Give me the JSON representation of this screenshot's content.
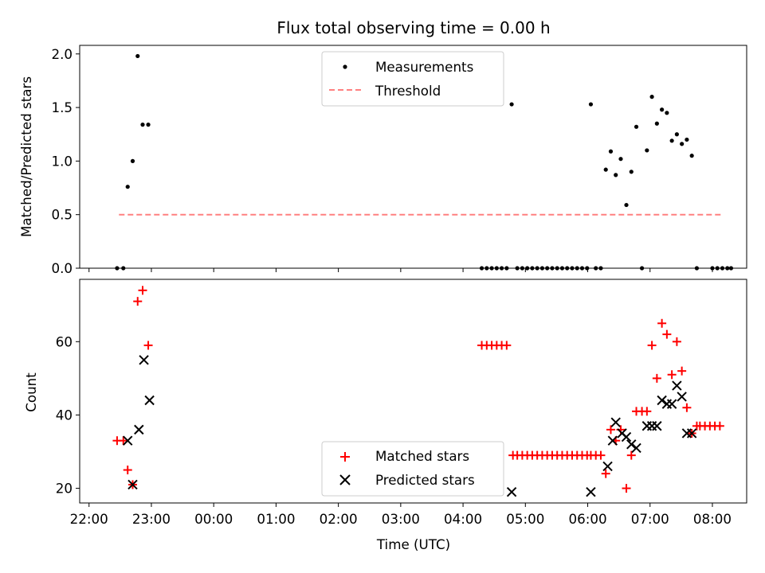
{
  "chart_data": [
    {
      "type": "scatter",
      "title": "Flux total observing time = 0.00 h",
      "xlabel": "",
      "ylabel": "Matched/Predicted stars",
      "xlim": [
        -0.15,
        10.55
      ],
      "ylim": [
        0,
        2.08
      ],
      "yticks": [
        0.0,
        0.5,
        1.0,
        1.5,
        2.0
      ],
      "ytick_labels": [
        "0.0",
        "0.5",
        "1.0",
        "1.5",
        "2.0"
      ],
      "legend": [
        "Measurements",
        "Threshold"
      ],
      "legend_position": "upper center",
      "series": [
        {
          "name": "Measurements",
          "marker": "dot",
          "color": "#000000",
          "x": [
            0.45,
            0.55,
            0.62,
            0.7,
            0.78,
            0.86,
            0.95,
            6.3,
            6.38,
            6.46,
            6.54,
            6.62,
            6.7,
            6.78,
            6.87,
            6.95,
            7.03,
            7.11,
            7.19,
            7.27,
            7.35,
            7.43,
            7.51,
            7.59,
            7.67,
            7.75,
            7.83,
            7.91,
            7.99,
            8.05,
            8.13,
            8.21,
            8.29,
            8.37,
            8.45,
            8.53,
            8.62,
            8.7,
            8.78,
            8.87,
            8.95,
            9.03,
            9.11,
            9.19,
            9.27,
            9.35,
            9.43,
            9.51,
            9.59,
            9.67,
            9.75,
            10.0,
            10.08,
            10.16,
            10.24,
            10.3
          ],
          "y": [
            0.0,
            0.0,
            0.76,
            1.0,
            1.98,
            1.34,
            1.34,
            0.0,
            0.0,
            0.0,
            0.0,
            0.0,
            0.0,
            1.53,
            0.0,
            0.0,
            0.0,
            0.0,
            0.0,
            0.0,
            0.0,
            0.0,
            0.0,
            0.0,
            0.0,
            0.0,
            0.0,
            0.0,
            0.0,
            1.53,
            0.0,
            0.0,
            0.92,
            1.09,
            0.87,
            1.02,
            0.59,
            0.9,
            1.32,
            0.0,
            1.1,
            1.6,
            1.35,
            1.48,
            1.45,
            1.19,
            1.25,
            1.16,
            1.2,
            1.05,
            0.0,
            0.0,
            0.0,
            0.0,
            0.0,
            0.0
          ]
        },
        {
          "name": "Threshold",
          "marker": "dashed-line",
          "color": "#ff8080",
          "x": [
            0.48,
            10.15
          ],
          "y": [
            0.5,
            0.5
          ]
        }
      ]
    },
    {
      "type": "scatter",
      "title": "",
      "xlabel": "Time (UTC)",
      "ylabel": "Count",
      "xlim": [
        -0.15,
        10.55
      ],
      "ylim": [
        16,
        77
      ],
      "yticks": [
        20,
        40,
        60
      ],
      "ytick_labels": [
        "20",
        "40",
        "60"
      ],
      "xticks": [
        0,
        1,
        2,
        3,
        4,
        5,
        6,
        7,
        8,
        9,
        10
      ],
      "xtick_labels": [
        "22:00",
        "23:00",
        "00:00",
        "01:00",
        "02:00",
        "03:00",
        "04:00",
        "05:00",
        "06:00",
        "07:00",
        "08:00"
      ],
      "legend": [
        "Matched stars",
        "Predicted stars"
      ],
      "legend_position": "lower center",
      "series": [
        {
          "name": "Matched stars",
          "marker": "plus",
          "color": "#ff0000",
          "x": [
            0.45,
            0.55,
            0.62,
            0.7,
            0.78,
            0.86,
            0.95,
            6.3,
            6.38,
            6.46,
            6.54,
            6.62,
            6.7,
            6.8,
            6.87,
            6.95,
            7.03,
            7.11,
            7.19,
            7.27,
            7.35,
            7.43,
            7.51,
            7.59,
            7.67,
            7.75,
            7.83,
            7.91,
            7.99,
            8.05,
            8.13,
            8.21,
            8.29,
            8.37,
            8.45,
            8.53,
            8.62,
            8.7,
            8.78,
            8.87,
            8.95,
            9.03,
            9.11,
            9.19,
            9.27,
            9.35,
            9.43,
            9.51,
            9.59,
            9.67,
            9.75,
            9.8,
            9.88,
            9.96,
            10.04,
            10.12
          ],
          "y": [
            33,
            33,
            25,
            21,
            71,
            74,
            59,
            59,
            59,
            59,
            59,
            59,
            59,
            29,
            29,
            29,
            29,
            29,
            29,
            29,
            29,
            29,
            29,
            29,
            29,
            29,
            29,
            29,
            29,
            29,
            29,
            29,
            24,
            36,
            33,
            36,
            20,
            29,
            41,
            41,
            41,
            59,
            50,
            65,
            62,
            51,
            60,
            52,
            42,
            35,
            37,
            37,
            37,
            37,
            37,
            37
          ]
        },
        {
          "name": "Predicted stars",
          "marker": "x",
          "color": "#000000",
          "x": [
            0.62,
            0.7,
            0.8,
            0.88,
            0.97,
            6.78,
            8.05,
            8.32,
            8.4,
            8.45,
            8.55,
            8.62,
            8.7,
            8.78,
            8.95,
            9.03,
            9.11,
            9.19,
            9.27,
            9.35,
            9.43,
            9.51,
            9.59,
            9.67
          ],
          "y": [
            33,
            21,
            36,
            55,
            44,
            19,
            19,
            26,
            33,
            38,
            35,
            34,
            32,
            31,
            37,
            37,
            37,
            44,
            43,
            43,
            48,
            45,
            35,
            35
          ]
        }
      ]
    }
  ]
}
